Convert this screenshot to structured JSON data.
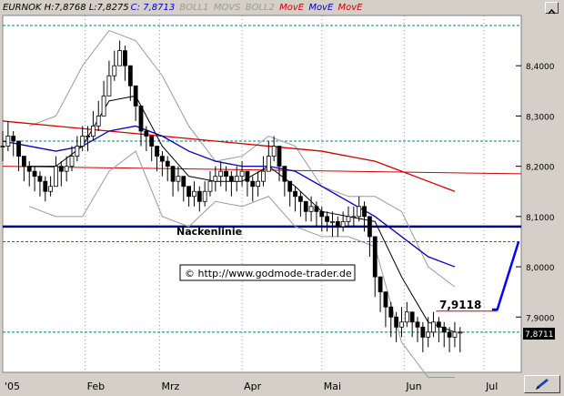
{
  "legend": {
    "symbol_hlc": "EURNOK H:7,8768 L:7,8275",
    "close": "C: 7,8713",
    "boll1": "BOLL1",
    "movs": "MOVS",
    "boll2": "BOLL2",
    "move1": "MovE",
    "move2": "MovE",
    "move3": "MovE"
  },
  "colors": {
    "price": "#000000",
    "bollinger": "#9a9a9a",
    "sma": "#000000",
    "ema_short": "#0000c0",
    "ema_long": "#d00000",
    "neckline": "#000080",
    "horizontal_red": "#d00000",
    "projection_arrow": "#0000ff",
    "support_dashed": "#008080",
    "grid_dotted": "#9a9a9a"
  },
  "annotations": {
    "neckline_label": "Nackenlinie",
    "copyright": "© http://www.godmode-trader.de",
    "target_label": "7,9118",
    "last_price_label": "7,8711"
  },
  "chart_data": {
    "type": "candlestick",
    "title": "",
    "y_axis": {
      "ticks": [
        8.4,
        8.3,
        8.2,
        8.1,
        8.0,
        7.9
      ],
      "tick_labels": [
        "8,4000",
        "8,3000",
        "8,2000",
        "8,1000",
        "8,0000",
        "7,9000"
      ],
      "ylim": [
        7.79,
        8.5
      ]
    },
    "x_axis": {
      "tick_labels": [
        "'05",
        "Feb",
        "Mrz",
        "Apr",
        "Mai",
        "Jun",
        "Jul"
      ],
      "tick_days": [
        0,
        31,
        59,
        90,
        120,
        151,
        181
      ],
      "xlim": [
        0,
        195
      ]
    },
    "horizontal_levels": {
      "support_dashed": [
        8.48,
        8.25,
        8.05,
        7.87
      ],
      "neckline": 8.08,
      "target": 7.9118,
      "last_price": 7.8711
    },
    "red_horizontal_line": {
      "y": [
        8.2,
        8.185
      ]
    },
    "projection_arrow": {
      "from": [
        186,
        7.915
      ],
      "to": [
        194,
        8.05
      ]
    },
    "series": [
      {
        "name": "close",
        "kind": "ohlc",
        "days": [
          0,
          2,
          4,
          6,
          8,
          10,
          12,
          14,
          16,
          18,
          20,
          22,
          24,
          26,
          28,
          30,
          32,
          34,
          36,
          38,
          40,
          42,
          44,
          46,
          48,
          50,
          52,
          54,
          56,
          58,
          60,
          62,
          64,
          66,
          68,
          70,
          72,
          74,
          76,
          78,
          80,
          82,
          84,
          86,
          88,
          90,
          92,
          94,
          96,
          98,
          100,
          102,
          104,
          106,
          108,
          110,
          112,
          114,
          116,
          118,
          120,
          122,
          124,
          126,
          128,
          130,
          132,
          134,
          136,
          138,
          140,
          142,
          144,
          146,
          148,
          150,
          152,
          154,
          156,
          158,
          160,
          162,
          164,
          166,
          168,
          170,
          172
        ],
        "close": [
          8.24,
          8.26,
          8.25,
          8.22,
          8.2,
          8.19,
          8.18,
          8.17,
          8.15,
          8.16,
          8.2,
          8.19,
          8.2,
          8.22,
          8.24,
          8.26,
          8.26,
          8.28,
          8.3,
          8.34,
          8.38,
          8.4,
          8.43,
          8.4,
          8.36,
          8.32,
          8.27,
          8.26,
          8.24,
          8.22,
          8.21,
          8.2,
          8.17,
          8.18,
          8.16,
          8.14,
          8.15,
          8.13,
          8.15,
          8.17,
          8.18,
          8.19,
          8.18,
          8.17,
          8.18,
          8.19,
          8.17,
          8.16,
          8.17,
          8.19,
          8.22,
          8.24,
          8.2,
          8.17,
          8.15,
          8.14,
          8.13,
          8.11,
          8.12,
          8.11,
          8.1,
          8.09,
          8.09,
          8.08,
          8.09,
          8.1,
          8.1,
          8.12,
          8.1,
          8.06,
          7.98,
          7.95,
          7.92,
          7.9,
          7.88,
          7.89,
          7.91,
          7.89,
          7.88,
          7.86,
          7.87,
          7.89,
          7.88,
          7.87,
          7.86,
          7.87,
          7.87
        ],
        "high": [
          8.27,
          8.29,
          8.27,
          8.24,
          8.22,
          8.21,
          8.2,
          8.19,
          8.18,
          8.18,
          8.22,
          8.21,
          8.22,
          8.24,
          8.26,
          8.28,
          8.28,
          8.31,
          8.33,
          8.37,
          8.41,
          8.43,
          8.45,
          8.44,
          8.39,
          8.35,
          8.3,
          8.28,
          8.26,
          8.24,
          8.23,
          8.22,
          8.2,
          8.2,
          8.18,
          8.16,
          8.17,
          8.16,
          8.17,
          8.19,
          8.2,
          8.21,
          8.2,
          8.19,
          8.2,
          8.21,
          8.19,
          8.18,
          8.19,
          8.22,
          8.25,
          8.26,
          8.23,
          8.2,
          8.17,
          8.16,
          8.15,
          8.13,
          8.14,
          8.13,
          8.12,
          8.11,
          8.11,
          8.1,
          8.11,
          8.12,
          8.12,
          8.14,
          8.13,
          8.09,
          8.02,
          7.98,
          7.95,
          7.93,
          7.91,
          7.92,
          7.93,
          7.91,
          7.9,
          7.89,
          7.9,
          7.91,
          7.9,
          7.89,
          7.88,
          7.89,
          7.88
        ],
        "low": [
          8.21,
          8.23,
          8.22,
          8.19,
          8.17,
          8.16,
          8.15,
          8.14,
          8.13,
          8.14,
          8.17,
          8.16,
          8.17,
          8.19,
          8.21,
          8.23,
          8.23,
          8.25,
          8.27,
          8.31,
          8.35,
          8.37,
          8.4,
          8.37,
          8.33,
          8.29,
          8.24,
          8.23,
          8.21,
          8.19,
          8.18,
          8.17,
          8.14,
          8.15,
          8.13,
          8.12,
          8.12,
          8.11,
          8.12,
          8.14,
          8.15,
          8.16,
          8.15,
          8.14,
          8.15,
          8.16,
          8.14,
          8.13,
          8.14,
          8.16,
          8.19,
          8.21,
          8.17,
          8.14,
          8.12,
          8.11,
          8.1,
          8.09,
          8.09,
          8.08,
          8.07,
          8.07,
          8.06,
          8.06,
          8.07,
          8.08,
          8.08,
          8.09,
          8.07,
          8.02,
          7.94,
          7.91,
          7.88,
          7.86,
          7.85,
          7.86,
          7.88,
          7.86,
          7.85,
          7.83,
          7.84,
          7.86,
          7.85,
          7.84,
          7.83,
          7.84,
          7.83
        ]
      },
      {
        "name": "sma",
        "days": [
          10,
          20,
          30,
          40,
          50,
          60,
          70,
          80,
          90,
          100,
          110,
          120,
          130,
          140,
          150,
          160,
          170
        ],
        "values": [
          8.2,
          8.2,
          8.24,
          8.33,
          8.34,
          8.24,
          8.18,
          8.17,
          8.17,
          8.2,
          8.16,
          8.11,
          8.1,
          8.09,
          7.98,
          7.89,
          7.87
        ]
      },
      {
        "name": "ema_short",
        "days": [
          0,
          10,
          20,
          30,
          40,
          50,
          60,
          70,
          80,
          90,
          100,
          110,
          120,
          130,
          140,
          150,
          160,
          170
        ],
        "values": [
          8.25,
          8.24,
          8.23,
          8.24,
          8.27,
          8.28,
          8.26,
          8.23,
          8.21,
          8.2,
          8.2,
          8.19,
          8.16,
          8.13,
          8.1,
          8.06,
          8.02,
          8.0
        ]
      },
      {
        "name": "ema_long",
        "days": [
          0,
          20,
          40,
          60,
          80,
          100,
          120,
          130,
          140,
          150,
          160,
          170
        ],
        "values": [
          8.29,
          8.28,
          8.27,
          8.26,
          8.25,
          8.24,
          8.23,
          8.22,
          8.21,
          8.19,
          8.17,
          8.15
        ]
      },
      {
        "name": "boll_upper",
        "days": [
          10,
          20,
          30,
          40,
          50,
          60,
          70,
          80,
          90,
          100,
          110,
          120,
          130,
          140,
          150,
          160,
          170
        ],
        "values": [
          8.28,
          8.3,
          8.4,
          8.47,
          8.45,
          8.38,
          8.28,
          8.21,
          8.22,
          8.26,
          8.24,
          8.16,
          8.14,
          8.14,
          8.11,
          8.0,
          7.96
        ]
      },
      {
        "name": "boll_lower",
        "days": [
          10,
          20,
          30,
          40,
          50,
          60,
          70,
          80,
          90,
          100,
          110,
          120,
          130,
          140,
          150,
          160,
          170
        ],
        "values": [
          8.12,
          8.1,
          8.1,
          8.19,
          8.23,
          8.1,
          8.08,
          8.13,
          8.12,
          8.14,
          8.08,
          8.06,
          8.06,
          8.04,
          7.85,
          7.78,
          7.78
        ]
      }
    ]
  }
}
